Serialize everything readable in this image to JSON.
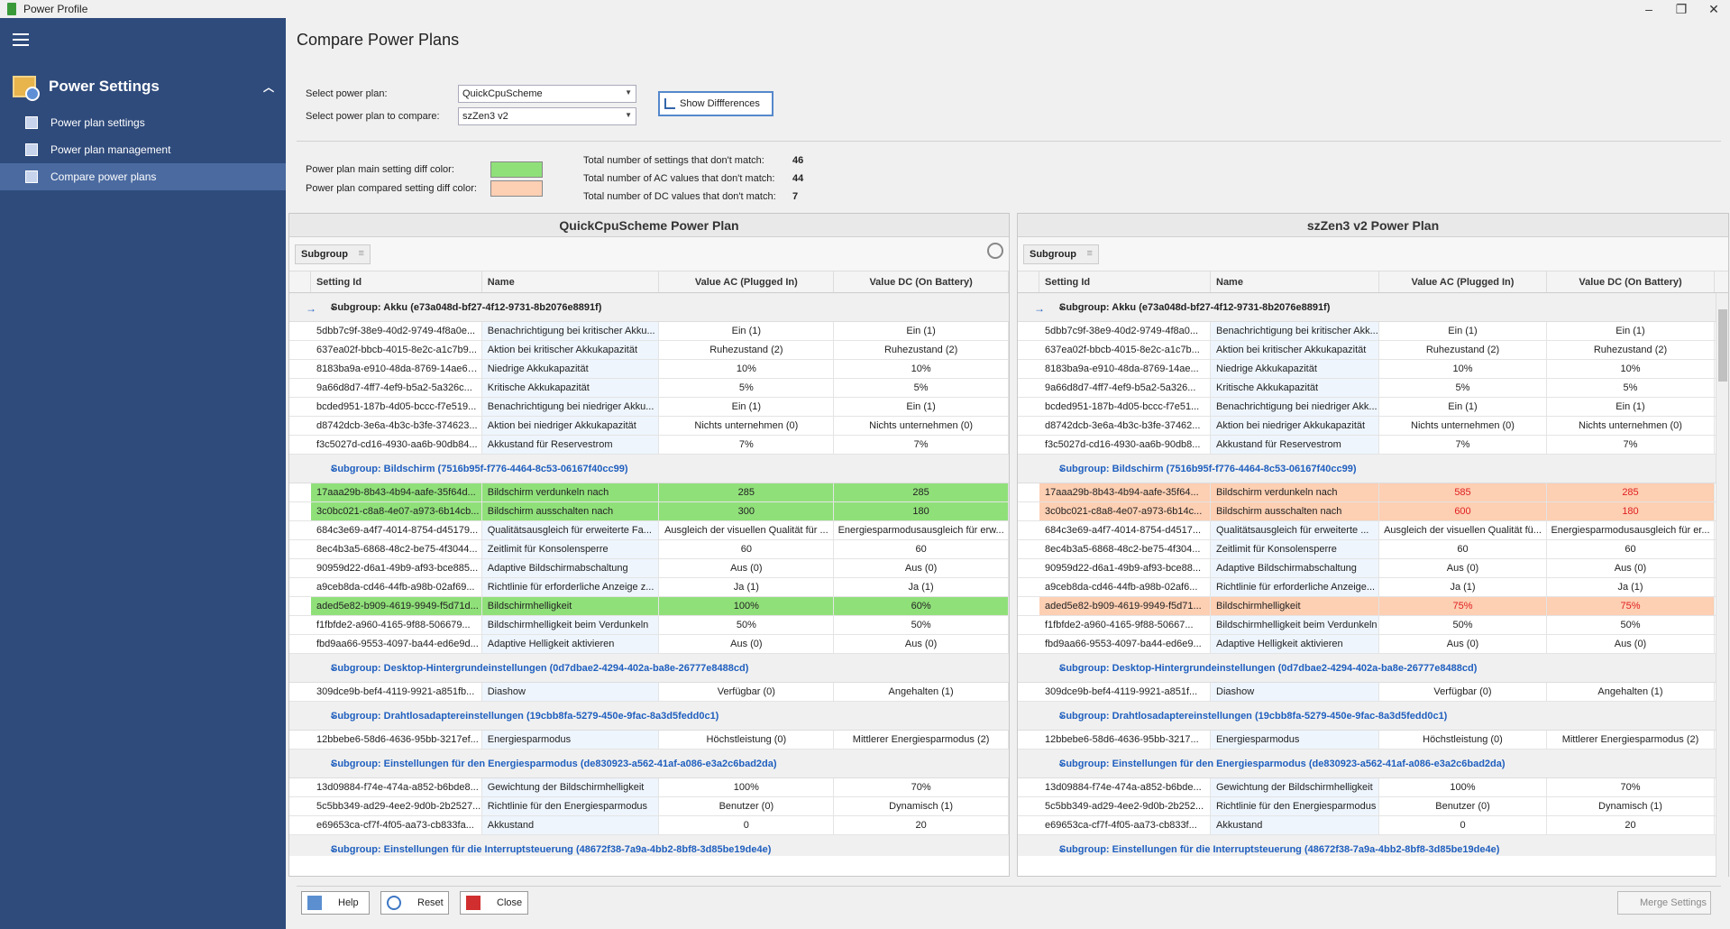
{
  "window": {
    "title": "Power Profile"
  },
  "sidebar": {
    "section_title": "Power Settings",
    "items": [
      {
        "label": "Power plan settings"
      },
      {
        "label": "Power plan management"
      },
      {
        "label": "Compare power plans"
      }
    ]
  },
  "page": {
    "title": "Compare Power Plans"
  },
  "form": {
    "select_plan_label": "Select power plan:",
    "select_plan_value": "QuickCpuScheme",
    "compare_plan_label": "Select power plan to compare:",
    "compare_plan_value": "szZen3 v2",
    "show_diff_label": "Show Diffferences",
    "main_color_label": "Power plan main setting diff color:",
    "compared_color_label": "Power plan compared setting diff color:",
    "main_color": "#90e07a",
    "compared_color": "#fdcfb3",
    "total_label": "Total number of settings that don't match:",
    "total_value": "46",
    "ac_label": "Total number of AC values that don't match:",
    "ac_value": "44",
    "dc_label": "Total number of DC values that don't match:",
    "dc_value": "7"
  },
  "columns": {
    "id": "Setting Id",
    "name": "Name",
    "ac": "Value AC (Plugged In)",
    "dc": "Value DC (On Battery)",
    "group_button": "Subgroup"
  },
  "left": {
    "title": "QuickCpuScheme Power Plan",
    "groups": [
      {
        "title": "Subgroup: Akku (e73a048d-bf27-4f12-9731-8b2076e8891f)",
        "rows": [
          {
            "id": "5dbb7c9f-38e9-40d2-9749-4f8a0e...",
            "name": "Benachrichtigung bei kritischer Akku...",
            "ac": "Ein (1)",
            "dc": "Ein (1)",
            "diff": ""
          },
          {
            "id": "637ea02f-bbcb-4015-8e2c-a1c7b9...",
            "name": "Aktion bei kritischer Akkukapazität",
            "ac": "Ruhezustand (2)",
            "dc": "Ruhezustand (2)",
            "diff": ""
          },
          {
            "id": "8183ba9a-e910-48da-8769-14ae6d...",
            "name": "Niedrige Akkukapazität",
            "ac": "10%",
            "dc": "10%",
            "diff": ""
          },
          {
            "id": "9a66d8d7-4ff7-4ef9-b5a2-5a326c...",
            "name": "Kritische Akkukapazität",
            "ac": "5%",
            "dc": "5%",
            "diff": ""
          },
          {
            "id": "bcded951-187b-4d05-bccc-f7e519...",
            "name": "Benachrichtigung bei niedriger Akku...",
            "ac": "Ein (1)",
            "dc": "Ein (1)",
            "diff": ""
          },
          {
            "id": "d8742dcb-3e6a-4b3c-b3fe-374623...",
            "name": "Aktion bei niedriger Akkukapazität",
            "ac": "Nichts unternehmen (0)",
            "dc": "Nichts unternehmen (0)",
            "diff": ""
          },
          {
            "id": "f3c5027d-cd16-4930-aa6b-90db84...",
            "name": "Akkustand für Reservestrom",
            "ac": "7%",
            "dc": "7%",
            "diff": ""
          }
        ]
      },
      {
        "title": "Subgroup: Bildschirm (7516b95f-f776-4464-8c53-06167f40cc99)",
        "rows": [
          {
            "id": "17aaa29b-8b43-4b94-aafe-35f64d...",
            "name": "Bildschirm verdunkeln nach",
            "ac": "285",
            "dc": "285",
            "diff": "gm"
          },
          {
            "id": "3c0bc021-c8a8-4e07-a973-6b14cb...",
            "name": "Bildschirm ausschalten nach",
            "ac": "300",
            "dc": "180",
            "diff": "gm"
          },
          {
            "id": "684c3e69-a4f7-4014-8754-d45179...",
            "name": "Qualitätsausgleich für erweiterte Fa...",
            "ac": "Ausgleich der visuellen Qualität für ...",
            "dc": "Energiesparmodusausgleich für erw...",
            "diff": ""
          },
          {
            "id": "8ec4b3a5-6868-48c2-be75-4f3044...",
            "name": "Zeitlimit für Konsolensperre",
            "ac": "60",
            "dc": "60",
            "diff": ""
          },
          {
            "id": "90959d22-d6a1-49b9-af93-bce885...",
            "name": "Adaptive Bildschirmabschaltung",
            "ac": "Aus (0)",
            "dc": "Aus (0)",
            "diff": ""
          },
          {
            "id": "a9ceb8da-cd46-44fb-a98b-02af69...",
            "name": "Richtlinie für erforderliche Anzeige z...",
            "ac": "Ja (1)",
            "dc": "Ja (1)",
            "diff": ""
          },
          {
            "id": "aded5e82-b909-4619-9949-f5d71d...",
            "name": "Bildschirmhelligkeit",
            "ac": "100%",
            "dc": "60%",
            "diff": "gm"
          },
          {
            "id": "f1fbfde2-a960-4165-9f88-506679...",
            "name": "Bildschirmhelligkeit beim Verdunkeln",
            "ac": "50%",
            "dc": "50%",
            "diff": ""
          },
          {
            "id": "fbd9aa66-9553-4097-ba44-ed6e9d...",
            "name": "Adaptive Helligkeit aktivieren",
            "ac": "Aus (0)",
            "dc": "Aus (0)",
            "diff": ""
          }
        ]
      },
      {
        "title": "Subgroup: Desktop-Hintergrundeinstellungen (0d7dbae2-4294-402a-ba8e-26777e8488cd)",
        "rows": [
          {
            "id": "309dce9b-bef4-4119-9921-a851fb...",
            "name": "Diashow",
            "ac": "Verfügbar (0)",
            "dc": "Angehalten (1)",
            "diff": ""
          }
        ]
      },
      {
        "title": "Subgroup: Drahtlosadaptereinstellungen (19cbb8fa-5279-450e-9fac-8a3d5fedd0c1)",
        "rows": [
          {
            "id": "12bbebe6-58d6-4636-95bb-3217ef...",
            "name": "Energiesparmodus",
            "ac": "Höchstleistung (0)",
            "dc": "Mittlerer Energiesparmodus (2)",
            "diff": ""
          }
        ]
      },
      {
        "title": "Subgroup: Einstellungen für den Energiesparmodus (de830923-a562-41af-a086-e3a2c6bad2da)",
        "rows": [
          {
            "id": "13d09884-f74e-474a-a852-b6bde8...",
            "name": "Gewichtung der Bildschirmhelligkeit",
            "ac": "100%",
            "dc": "70%",
            "diff": ""
          },
          {
            "id": "5c5bb349-ad29-4ee2-9d0b-2b2527...",
            "name": "Richtlinie für den Energiesparmodus",
            "ac": "Benutzer (0)",
            "dc": "Dynamisch (1)",
            "diff": ""
          },
          {
            "id": "e69653ca-cf7f-4f05-aa73-cb833fa...",
            "name": "Akkustand",
            "ac": "0",
            "dc": "20",
            "diff": ""
          }
        ]
      },
      {
        "title": "Subgroup: Einstellungen für die Interruptsteuerung (48672f38-7a9a-4bb2-8bf8-3d85be19de4e)",
        "rows": []
      }
    ]
  },
  "right": {
    "title": "szZen3 v2 Power Plan",
    "groups": [
      {
        "title": "Subgroup: Akku (e73a048d-bf27-4f12-9731-8b2076e8891f)",
        "rows": [
          {
            "id": "5dbb7c9f-38e9-40d2-9749-4f8a0...",
            "name": "Benachrichtigung bei kritischer Akk...",
            "ac": "Ein (1)",
            "dc": "Ein (1)",
            "diff": ""
          },
          {
            "id": "637ea02f-bbcb-4015-8e2c-a1c7b...",
            "name": "Aktion bei kritischer Akkukapazität",
            "ac": "Ruhezustand (2)",
            "dc": "Ruhezustand (2)",
            "diff": ""
          },
          {
            "id": "8183ba9a-e910-48da-8769-14ae...",
            "name": "Niedrige Akkukapazität",
            "ac": "10%",
            "dc": "10%",
            "diff": ""
          },
          {
            "id": "9a66d8d7-4ff7-4ef9-b5a2-5a326...",
            "name": "Kritische Akkukapazität",
            "ac": "5%",
            "dc": "5%",
            "diff": ""
          },
          {
            "id": "bcded951-187b-4d05-bccc-f7e51...",
            "name": "Benachrichtigung bei niedriger Akk...",
            "ac": "Ein (1)",
            "dc": "Ein (1)",
            "diff": ""
          },
          {
            "id": "d8742dcb-3e6a-4b3c-b3fe-37462...",
            "name": "Aktion bei niedriger Akkukapazität",
            "ac": "Nichts unternehmen (0)",
            "dc": "Nichts unternehmen (0)",
            "diff": ""
          },
          {
            "id": "f3c5027d-cd16-4930-aa6b-90db8...",
            "name": "Akkustand für Reservestrom",
            "ac": "7%",
            "dc": "7%",
            "diff": ""
          }
        ]
      },
      {
        "title": "Subgroup: Bildschirm (7516b95f-f776-4464-8c53-06167f40cc99)",
        "rows": [
          {
            "id": "17aaa29b-8b43-4b94-aafe-35f64...",
            "name": "Bildschirm verdunkeln nach",
            "ac": "585",
            "dc": "285",
            "diff": "oc"
          },
          {
            "id": "3c0bc021-c8a8-4e07-a973-6b14c...",
            "name": "Bildschirm ausschalten nach",
            "ac": "600",
            "dc": "180",
            "diff": "oc"
          },
          {
            "id": "684c3e69-a4f7-4014-8754-d4517...",
            "name": "Qualitätsausgleich für erweiterte ...",
            "ac": "Ausgleich der visuellen Qualität fü...",
            "dc": "Energiesparmodusausgleich für er...",
            "diff": ""
          },
          {
            "id": "8ec4b3a5-6868-48c2-be75-4f304...",
            "name": "Zeitlimit für Konsolensperre",
            "ac": "60",
            "dc": "60",
            "diff": ""
          },
          {
            "id": "90959d22-d6a1-49b9-af93-bce88...",
            "name": "Adaptive Bildschirmabschaltung",
            "ac": "Aus (0)",
            "dc": "Aus (0)",
            "diff": ""
          },
          {
            "id": "a9ceb8da-cd46-44fb-a98b-02af6...",
            "name": "Richtlinie für erforderliche Anzeige...",
            "ac": "Ja (1)",
            "dc": "Ja (1)",
            "diff": ""
          },
          {
            "id": "aded5e82-b909-4619-9949-f5d71...",
            "name": "Bildschirmhelligkeit",
            "ac": "75%",
            "dc": "75%",
            "diff": "oc"
          },
          {
            "id": "f1fbfde2-a960-4165-9f88-50667...",
            "name": "Bildschirmhelligkeit beim Verdunkeln",
            "ac": "50%",
            "dc": "50%",
            "diff": ""
          },
          {
            "id": "fbd9aa66-9553-4097-ba44-ed6e9...",
            "name": "Adaptive Helligkeit aktivieren",
            "ac": "Aus (0)",
            "dc": "Aus (0)",
            "diff": ""
          }
        ]
      },
      {
        "title": "Subgroup: Desktop-Hintergrundeinstellungen (0d7dbae2-4294-402a-ba8e-26777e8488cd)",
        "rows": [
          {
            "id": "309dce9b-bef4-4119-9921-a851f...",
            "name": "Diashow",
            "ac": "Verfügbar (0)",
            "dc": "Angehalten (1)",
            "diff": ""
          }
        ]
      },
      {
        "title": "Subgroup: Drahtlosadaptereinstellungen (19cbb8fa-5279-450e-9fac-8a3d5fedd0c1)",
        "rows": [
          {
            "id": "12bbebe6-58d6-4636-95bb-3217...",
            "name": "Energiesparmodus",
            "ac": "Höchstleistung (0)",
            "dc": "Mittlerer Energiesparmodus (2)",
            "diff": ""
          }
        ]
      },
      {
        "title": "Subgroup: Einstellungen für den Energiesparmodus (de830923-a562-41af-a086-e3a2c6bad2da)",
        "rows": [
          {
            "id": "13d09884-f74e-474a-a852-b6bde...",
            "name": "Gewichtung der Bildschirmhelligkeit",
            "ac": "100%",
            "dc": "70%",
            "diff": ""
          },
          {
            "id": "5c5bb349-ad29-4ee2-9d0b-2b252...",
            "name": "Richtlinie für den Energiesparmodus",
            "ac": "Benutzer (0)",
            "dc": "Dynamisch (1)",
            "diff": ""
          },
          {
            "id": "e69653ca-cf7f-4f05-aa73-cb833f...",
            "name": "Akkustand",
            "ac": "0",
            "dc": "20",
            "diff": ""
          }
        ]
      },
      {
        "title": "Subgroup: Einstellungen für die Interruptsteuerung (48672f38-7a9a-4bb2-8bf8-3d85be19de4e)",
        "rows": []
      }
    ]
  },
  "footer": {
    "help": "Help",
    "reset": "Reset",
    "close": "Close",
    "merge": "Merge Settings"
  }
}
